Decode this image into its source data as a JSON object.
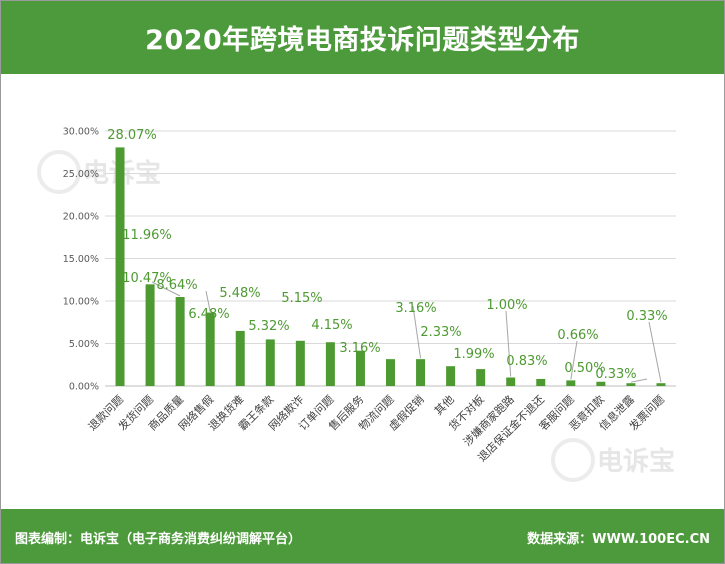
{
  "header": {
    "title": "2020年跨境电商投诉问题类型分布"
  },
  "footer": {
    "source_credit": "图表编制：电诉宝（电子商务消费纠纷调解平台）",
    "data_source": "数据来源：WWW.100EC.CN"
  },
  "watermark": {
    "brand": "电诉宝"
  },
  "colors": {
    "brand_green": "#4d9a3c",
    "bar": "#4e9a32",
    "value_label": "#4e9a32"
  },
  "chart_data": {
    "type": "bar",
    "title": "2020年跨境电商投诉问题类型分布",
    "xlabel": "",
    "ylabel": "",
    "ylim": [
      0,
      30
    ],
    "yticks": [
      0,
      5,
      10,
      15,
      20,
      25,
      30
    ],
    "ytick_labels": [
      "0.00%",
      "5.00%",
      "10.00%",
      "15.00%",
      "20.00%",
      "25.00%",
      "30.00%"
    ],
    "grid": true,
    "categories": [
      "退款问题",
      "发货问题",
      "商品质量",
      "网络售假",
      "退换货难",
      "霸王条款",
      "网络欺诈",
      "订单问题",
      "售后服务",
      "物流问题",
      "虚假促销",
      "其他",
      "货不对板",
      "涉嫌商家跑路",
      "退店保证金不退还",
      "客服问题",
      "恶意扣款",
      "信息泄露",
      "发票问题"
    ],
    "values": [
      28.07,
      11.96,
      10.47,
      8.64,
      6.48,
      5.48,
      5.32,
      5.15,
      4.15,
      3.16,
      3.16,
      2.33,
      1.99,
      1.0,
      0.83,
      0.66,
      0.5,
      0.33,
      0.33
    ],
    "value_labels": [
      "28.07%",
      "11.96%",
      "10.47%",
      "8.64%",
      "6.48%",
      "5.48%",
      "5.32%",
      "5.15%",
      "4.15%",
      "3.16%",
      "3.16%",
      "2.33%",
      "1.99%",
      "1.00%",
      "0.83%",
      "0.66%",
      "0.50%",
      "0.33%",
      "0.33%"
    ]
  }
}
